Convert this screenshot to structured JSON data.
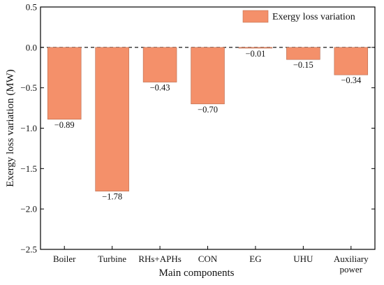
{
  "chart_data": {
    "type": "bar",
    "title": "",
    "xlabel": "Main components",
    "ylabel": "Exergy loss variation (MW)",
    "ylim": [
      -2.5,
      0.5
    ],
    "yticks": [
      "0.5",
      "0.0",
      "-0.5",
      "-1.0",
      "-1.5",
      "-2.0",
      "-2.5"
    ],
    "grid": false,
    "legend_position": "top-right",
    "categories": [
      [
        "Boiler"
      ],
      [
        "Turbine"
      ],
      [
        "RHs+APHs"
      ],
      [
        "CON"
      ],
      [
        "EG"
      ],
      [
        "UHU"
      ],
      [
        "Auxiliary",
        "power"
      ]
    ],
    "series": [
      {
        "name": "Exergy loss variation",
        "color": "#f4906a",
        "values": [
          -0.89,
          -1.78,
          -0.43,
          -0.7,
          -0.01,
          -0.15,
          -0.34
        ],
        "labels": [
          "−0.89",
          "−1.78",
          "−0.43",
          "−0.70",
          "−0.01",
          "−0.15",
          "−0.34"
        ]
      }
    ]
  }
}
